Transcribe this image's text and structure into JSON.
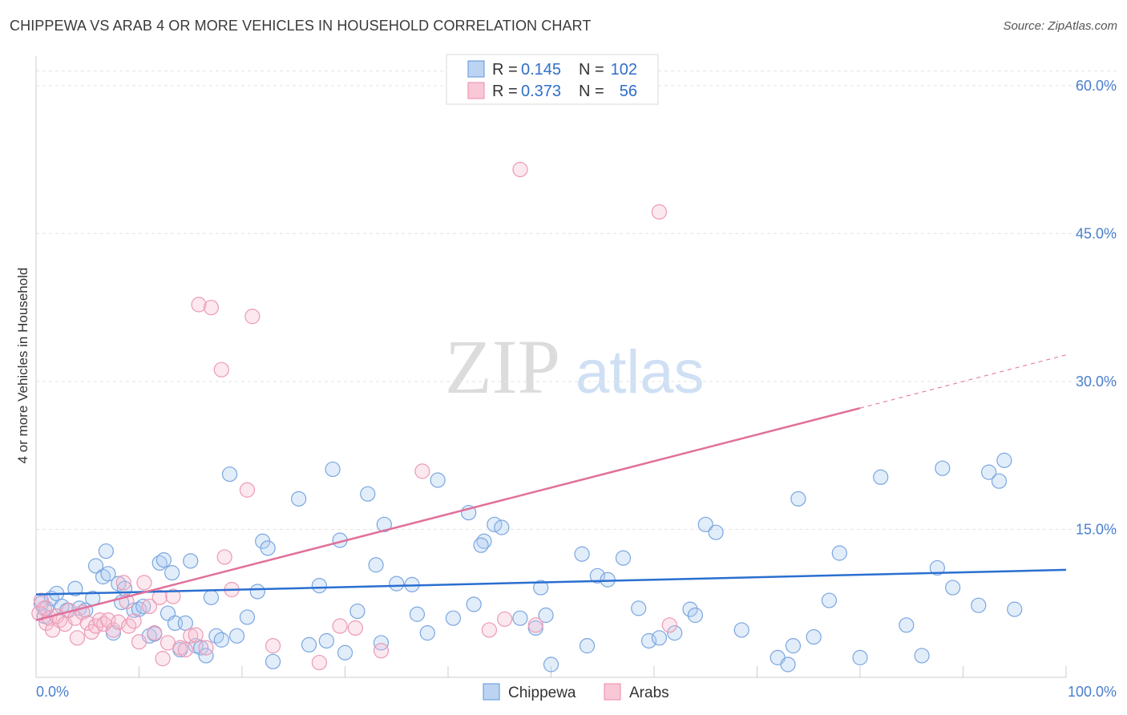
{
  "header": {
    "title": "CHIPPEWA VS ARAB 4 OR MORE VEHICLES IN HOUSEHOLD CORRELATION CHART",
    "source": "Source: ZipAtlas.com"
  },
  "watermark": {
    "zip": "ZIP",
    "atlas": "atlas"
  },
  "chart_data": {
    "type": "scatter",
    "title": "CHIPPEWA VS ARAB 4 OR MORE VEHICLES IN HOUSEHOLD CORRELATION CHART",
    "xlabel": "",
    "ylabel": "4 or more Vehicles in Household",
    "xlim": [
      0,
      100
    ],
    "ylim": [
      0,
      63
    ],
    "x_tick_labels": [
      "0.0%",
      "100.0%"
    ],
    "y_ticks": [
      15,
      30,
      45,
      60
    ],
    "y_tick_labels": [
      "15.0%",
      "30.0%",
      "45.0%",
      "60.0%"
    ],
    "grid": true,
    "legend_placement": "top-center",
    "colors": {
      "Chippewa": "#5b93d9",
      "Arabs": "#ec8aa9",
      "chippewa_line": "#2a6fd0",
      "arabs_line": "#e0709a"
    },
    "series": [
      {
        "name": "Chippewa",
        "R": "0.145",
        "N": "102",
        "trend": {
          "x": [
            0,
            100
          ],
          "y": [
            8.4,
            10.9
          ]
        },
        "points": [
          [
            0.5,
            7.5
          ],
          [
            0.8,
            6.2
          ],
          [
            1.0,
            7.0
          ],
          [
            1.5,
            8.0
          ],
          [
            2.0,
            8.5
          ],
          [
            2.5,
            7.2
          ],
          [
            3.0,
            6.8
          ],
          [
            3.8,
            9.0
          ],
          [
            4.2,
            7.0
          ],
          [
            4.8,
            6.8
          ],
          [
            5.5,
            8.0
          ],
          [
            5.8,
            11.3
          ],
          [
            6.5,
            10.2
          ],
          [
            6.8,
            12.8
          ],
          [
            7.0,
            10.5
          ],
          [
            7.5,
            4.5
          ],
          [
            8.0,
            9.5
          ],
          [
            8.3,
            7.6
          ],
          [
            8.6,
            9.0
          ],
          [
            9.5,
            6.8
          ],
          [
            10.0,
            6.9
          ],
          [
            10.4,
            7.2
          ],
          [
            11.0,
            4.2
          ],
          [
            11.5,
            4.4
          ],
          [
            12.0,
            11.6
          ],
          [
            12.4,
            11.9
          ],
          [
            12.8,
            6.5
          ],
          [
            13.2,
            10.6
          ],
          [
            13.5,
            5.5
          ],
          [
            14.0,
            2.8
          ],
          [
            14.5,
            5.5
          ],
          [
            15.0,
            11.8
          ],
          [
            15.5,
            3.2
          ],
          [
            16.0,
            3.0
          ],
          [
            16.5,
            2.2
          ],
          [
            17.0,
            8.1
          ],
          [
            17.5,
            4.2
          ],
          [
            18.0,
            3.8
          ],
          [
            18.8,
            20.6
          ],
          [
            19.5,
            4.2
          ],
          [
            20.5,
            6.1
          ],
          [
            21.5,
            8.7
          ],
          [
            22.0,
            13.8
          ],
          [
            22.5,
            13.1
          ],
          [
            23.0,
            1.6
          ],
          [
            25.5,
            18.1
          ],
          [
            26.5,
            3.3
          ],
          [
            27.5,
            9.3
          ],
          [
            28.2,
            3.7
          ],
          [
            28.8,
            21.1
          ],
          [
            29.5,
            13.9
          ],
          [
            30.0,
            2.5
          ],
          [
            31.2,
            6.7
          ],
          [
            32.2,
            18.6
          ],
          [
            33.5,
            3.5
          ],
          [
            33.0,
            11.4
          ],
          [
            33.8,
            15.5
          ],
          [
            35.0,
            9.5
          ],
          [
            36.5,
            9.4
          ],
          [
            37.0,
            6.4
          ],
          [
            38.0,
            4.5
          ],
          [
            39.0,
            20.0
          ],
          [
            40.5,
            6.0
          ],
          [
            42.0,
            16.7
          ],
          [
            42.5,
            7.4
          ],
          [
            43.5,
            13.8
          ],
          [
            43.2,
            13.4
          ],
          [
            44.5,
            15.5
          ],
          [
            45.2,
            15.2
          ],
          [
            47.0,
            6.0
          ],
          [
            48.5,
            5.0
          ],
          [
            49.0,
            9.1
          ],
          [
            49.5,
            6.3
          ],
          [
            50.0,
            1.3
          ],
          [
            53.0,
            12.5
          ],
          [
            53.5,
            3.2
          ],
          [
            54.5,
            10.3
          ],
          [
            55.5,
            9.9
          ],
          [
            57.0,
            12.1
          ],
          [
            58.5,
            7.0
          ],
          [
            59.5,
            3.7
          ],
          [
            60.5,
            4.0
          ],
          [
            62.0,
            4.5
          ],
          [
            63.5,
            6.9
          ],
          [
            64.0,
            6.3
          ],
          [
            65.0,
            15.5
          ],
          [
            66.0,
            14.7
          ],
          [
            68.5,
            4.8
          ],
          [
            72.0,
            2.0
          ],
          [
            73.0,
            1.3
          ],
          [
            73.5,
            3.2
          ],
          [
            74.0,
            18.1
          ],
          [
            75.5,
            4.1
          ],
          [
            77.0,
            7.8
          ],
          [
            78.0,
            12.6
          ],
          [
            80.0,
            2.0
          ],
          [
            82.0,
            20.3
          ],
          [
            84.5,
            5.3
          ],
          [
            86.0,
            2.2
          ],
          [
            87.5,
            11.1
          ],
          [
            88.0,
            21.2
          ],
          [
            89.0,
            9.1
          ],
          [
            91.5,
            7.3
          ],
          [
            92.5,
            20.8
          ],
          [
            93.5,
            19.9
          ],
          [
            94.0,
            22.0
          ],
          [
            95.0,
            6.9
          ]
        ]
      },
      {
        "name": "Arabs",
        "R": "0.373",
        "N": "56",
        "trend": {
          "x": [
            0,
            80
          ],
          "y": [
            5.8,
            27.3
          ]
        },
        "trend_dashed": {
          "x": [
            80,
            100
          ],
          "y": [
            27.3,
            32.7
          ]
        },
        "points": [
          [
            0.3,
            6.5
          ],
          [
            0.5,
            7.8
          ],
          [
            0.8,
            7.0
          ],
          [
            1.0,
            5.5
          ],
          [
            1.3,
            6.0
          ],
          [
            1.6,
            4.8
          ],
          [
            2.0,
            6.2
          ],
          [
            2.3,
            5.8
          ],
          [
            2.8,
            5.4
          ],
          [
            3.2,
            6.8
          ],
          [
            3.8,
            6.0
          ],
          [
            4.0,
            4.0
          ],
          [
            4.5,
            6.6
          ],
          [
            5.0,
            5.5
          ],
          [
            5.4,
            4.6
          ],
          [
            5.8,
            5.2
          ],
          [
            6.2,
            5.8
          ],
          [
            6.6,
            5.4
          ],
          [
            7.0,
            5.8
          ],
          [
            7.5,
            4.8
          ],
          [
            8.0,
            5.6
          ],
          [
            8.5,
            9.6
          ],
          [
            8.8,
            7.7
          ],
          [
            9.0,
            5.2
          ],
          [
            9.5,
            5.7
          ],
          [
            10.0,
            3.6
          ],
          [
            10.5,
            9.6
          ],
          [
            11.0,
            7.2
          ],
          [
            11.5,
            4.5
          ],
          [
            12.0,
            8.1
          ],
          [
            12.3,
            1.9
          ],
          [
            12.8,
            3.5
          ],
          [
            13.3,
            8.2
          ],
          [
            14.0,
            3.0
          ],
          [
            14.5,
            2.8
          ],
          [
            15.0,
            4.2
          ],
          [
            15.5,
            4.3
          ],
          [
            15.8,
            37.8
          ],
          [
            16.5,
            3.0
          ],
          [
            17.0,
            37.5
          ],
          [
            18.0,
            31.2
          ],
          [
            18.3,
            12.2
          ],
          [
            19.0,
            8.9
          ],
          [
            20.5,
            19.0
          ],
          [
            21.0,
            36.6
          ],
          [
            23.0,
            3.2
          ],
          [
            27.5,
            1.5
          ],
          [
            29.5,
            5.2
          ],
          [
            31.0,
            5.0
          ],
          [
            33.5,
            2.7
          ],
          [
            37.5,
            20.9
          ],
          [
            44.0,
            4.8
          ],
          [
            45.5,
            5.9
          ],
          [
            47.0,
            51.5
          ],
          [
            48.5,
            5.3
          ],
          [
            60.5,
            47.2
          ],
          [
            61.5,
            5.3
          ]
        ]
      }
    ]
  },
  "legend": {
    "r_label": "R =",
    "n_label": "N =",
    "entries": [
      {
        "series": "Chippewa",
        "r": "0.145",
        "n": "102"
      },
      {
        "series": "Arabs",
        "r": "0.373",
        "n": "56"
      }
    ]
  },
  "bottom_legend": {
    "items": [
      "Chippewa",
      "Arabs"
    ]
  }
}
